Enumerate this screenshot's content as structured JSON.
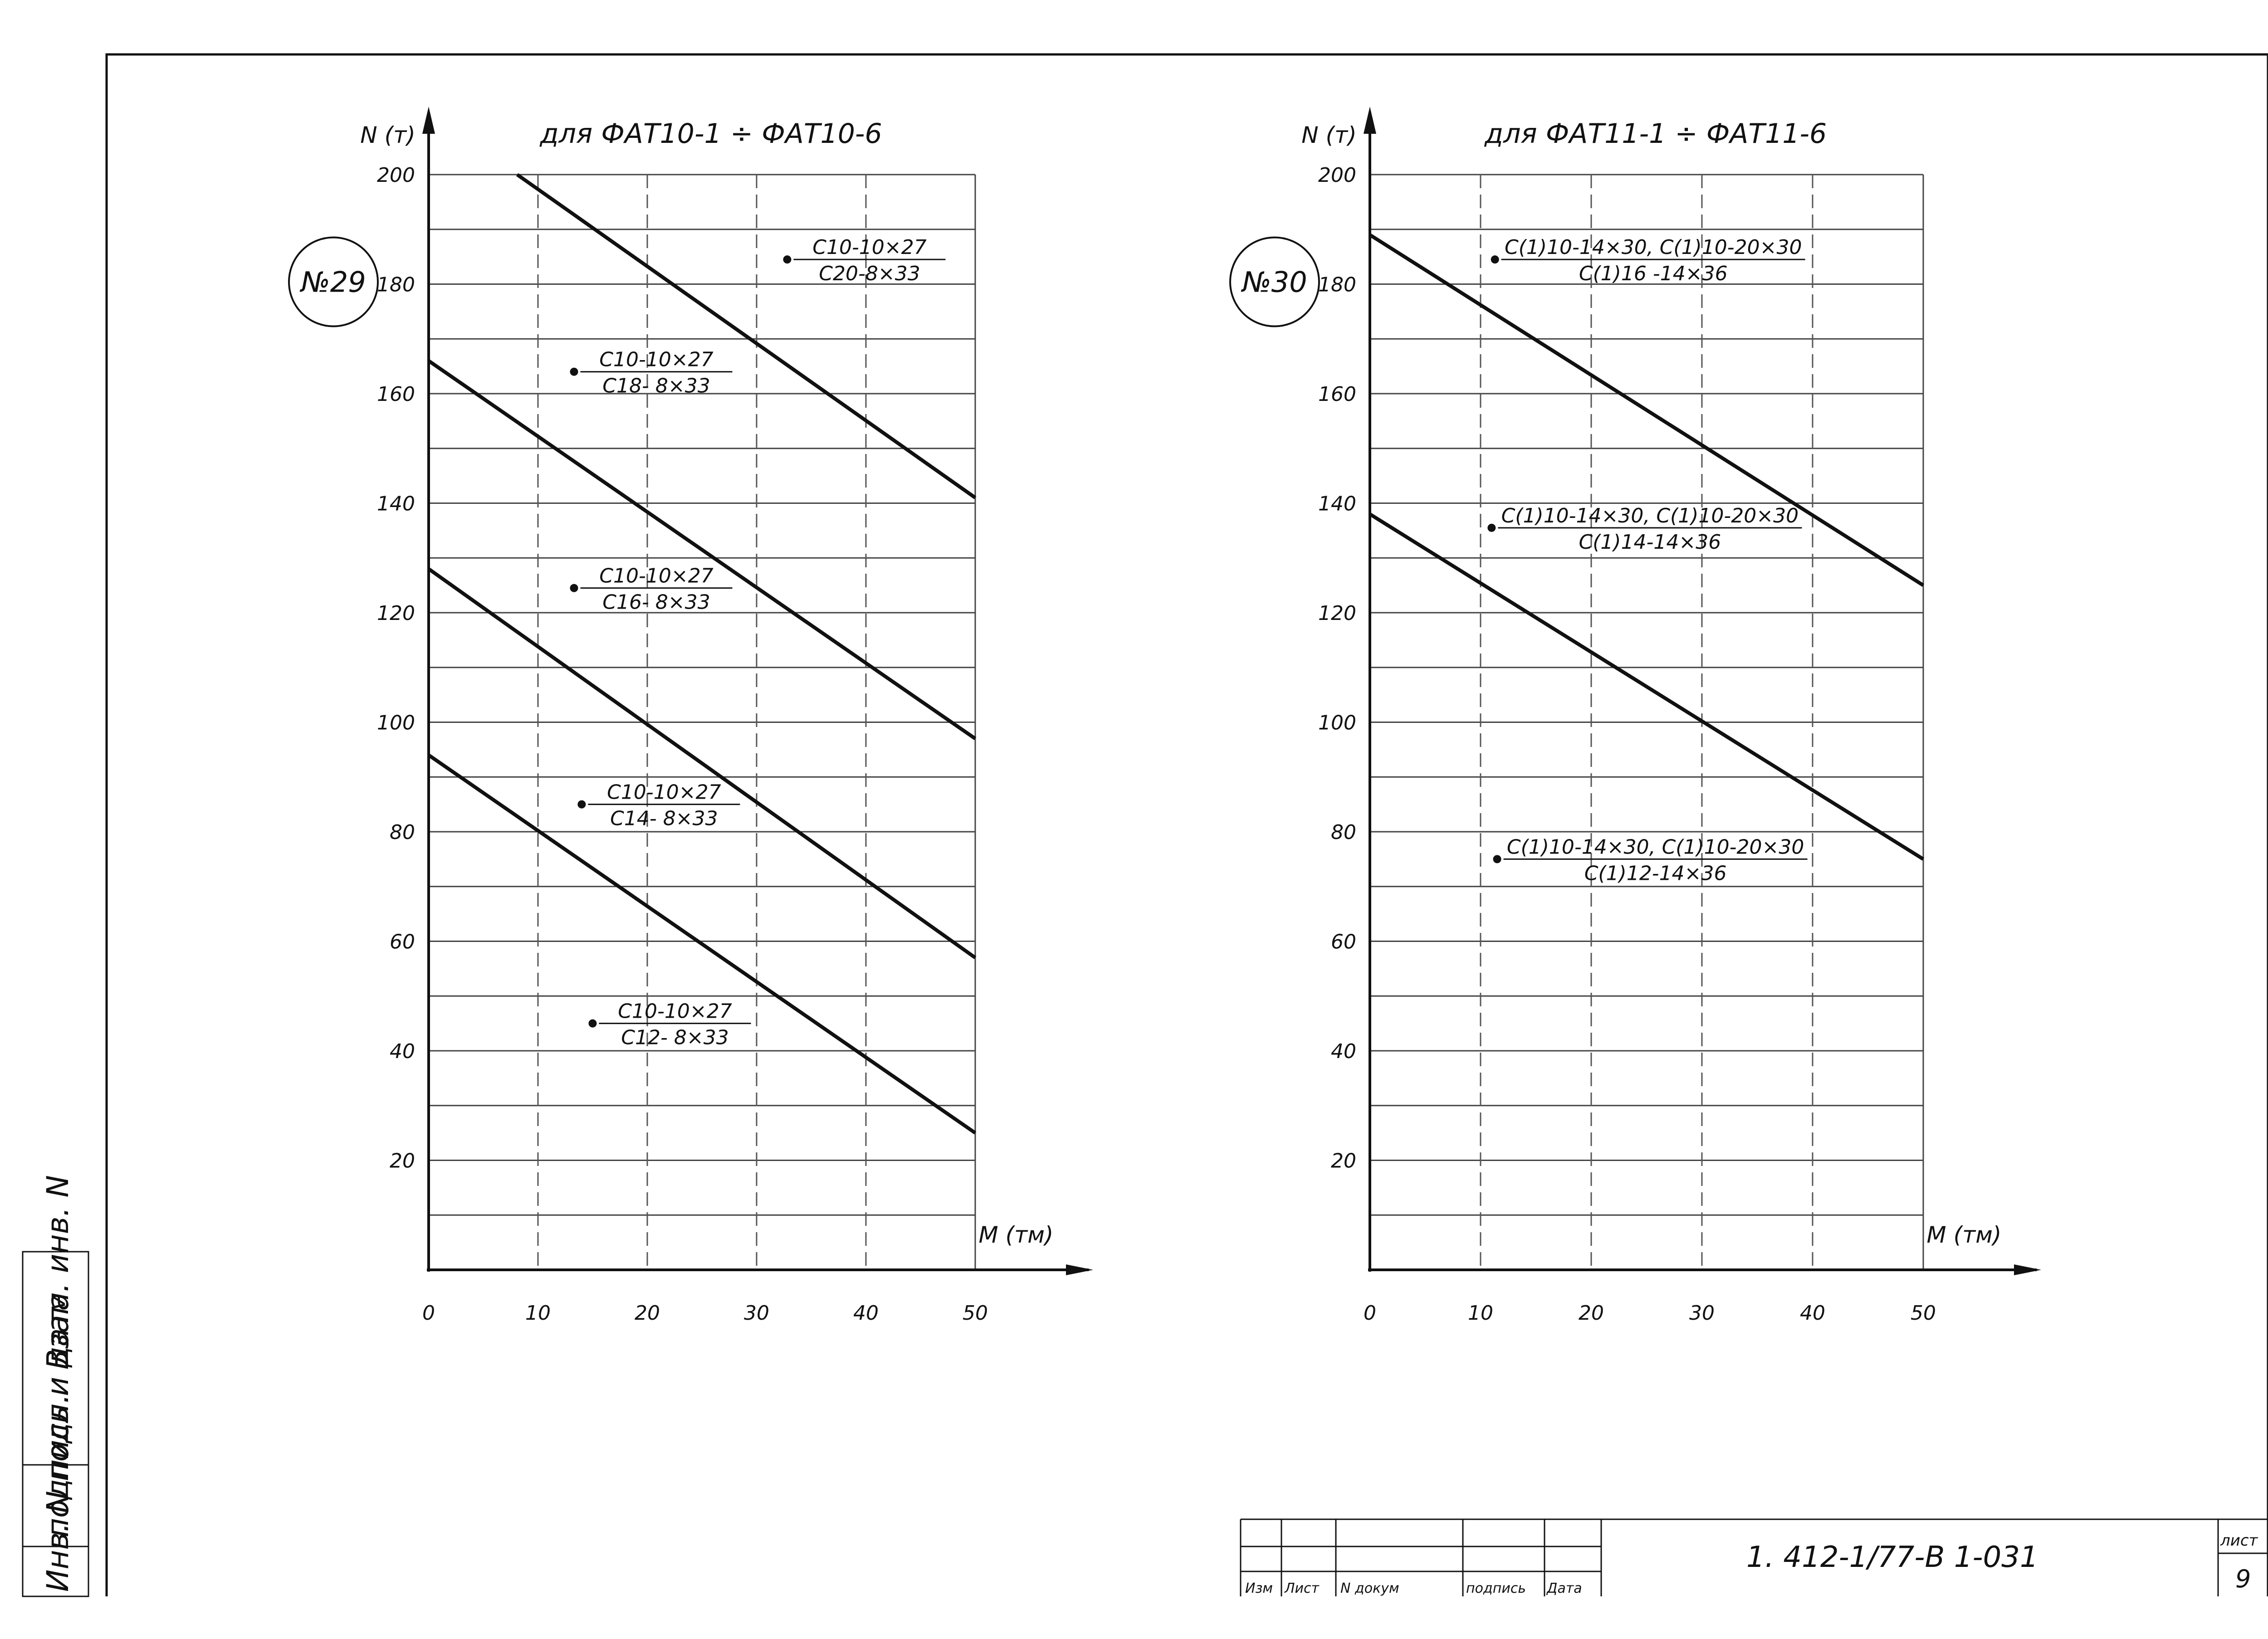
{
  "corner_mark": "",
  "document": {
    "code": "1. 412-1/77-В 1-031",
    "sheet_label": "лист",
    "sheet_number": "9"
  },
  "title_block": {
    "columns": [
      "Изм",
      "Лист",
      "N докум",
      "подпись",
      "Дата"
    ]
  },
  "side_stamp": {
    "lines": [
      "Инв. N подл.",
      "подпись и дата",
      "Взам. инв. N"
    ]
  },
  "chart_data": [
    {
      "type": "line",
      "badge": "№29",
      "title": "для ФАТ10-1 ÷ ФАТ10-6",
      "xlabel": "M (тм)",
      "ylabel": "N (т)",
      "xlim": [
        0,
        50
      ],
      "ylim": [
        0,
        200
      ],
      "x_ticks": [
        "0",
        "10",
        "20",
        "30",
        "40",
        "50"
      ],
      "y_ticks": [
        "20",
        "40",
        "60",
        "80",
        "100",
        "120",
        "140",
        "160",
        "180",
        "200"
      ],
      "grid": true,
      "series": [
        {
          "x": [
            0,
            50
          ],
          "y": [
            94,
            25
          ],
          "label": [
            "С10-10×27",
            "С12- 8×33"
          ],
          "label_at": [
            15.0,
            45
          ]
        },
        {
          "x": [
            0,
            50
          ],
          "y": [
            128,
            57
          ],
          "label": [
            "С10-10×27",
            "С14- 8×33"
          ],
          "label_at": [
            14.0,
            85
          ]
        },
        {
          "x": [
            0,
            50
          ],
          "y": [
            166,
            97
          ],
          "label": [
            "С10-10×27",
            "С16- 8×33"
          ],
          "label_at": [
            13.3,
            124.5
          ]
        },
        {
          "x": [
            8.1,
            50
          ],
          "y": [
            200,
            141
          ],
          "label": [
            "С10-10×27",
            "С18- 8×33"
          ],
          "label_at": [
            13.3,
            164
          ]
        },
        {
          "x": [],
          "y": [],
          "label": [
            "С10-10×27",
            "С20-8×33"
          ],
          "label_at": [
            32.8,
            184.5
          ]
        }
      ]
    },
    {
      "type": "line",
      "badge": "№30",
      "title": "для ФАТ11-1 ÷ ФАТ11-6",
      "xlabel": "M (тм)",
      "ylabel": "N (т)",
      "xlim": [
        0,
        50
      ],
      "ylim": [
        0,
        200
      ],
      "x_ticks": [
        "0",
        "10",
        "20",
        "30",
        "40",
        "50"
      ],
      "y_ticks": [
        "20",
        "40",
        "60",
        "80",
        "100",
        "120",
        "140",
        "160",
        "180",
        "200"
      ],
      "grid": true,
      "series": [
        {
          "x": [
            0,
            50
          ],
          "y": [
            138,
            75
          ],
          "label": [
            "С(1)10-14×30, С(1)10-20×30",
            "С(1)12-14×36"
          ],
          "label_at": [
            11.5,
            75
          ]
        },
        {
          "x": [
            0,
            50
          ],
          "y": [
            189,
            125
          ],
          "label": [
            "С(1)10-14×30, С(1)10-20×30",
            "С(1)14-14×36"
          ],
          "label_at": [
            11.0,
            135.5
          ]
        },
        {
          "x": [],
          "y": [],
          "label": [
            "С(1)10-14×30, С(1)10-20×30",
            "С(1)16 -14×36"
          ],
          "label_at": [
            11.3,
            184.5
          ]
        }
      ]
    }
  ]
}
